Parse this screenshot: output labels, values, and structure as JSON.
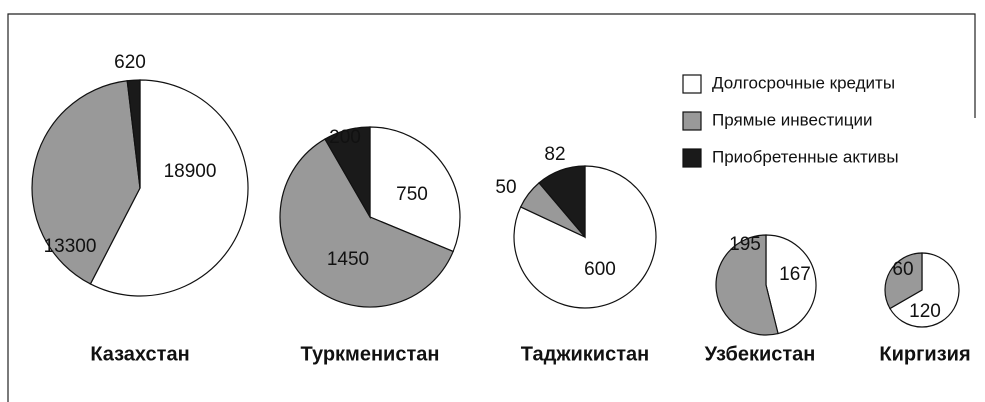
{
  "legend": {
    "categories": [
      "Долгосрочные кредиты",
      "Прямые инвестиции",
      "Приобретенные активы"
    ],
    "colors": [
      "#ffffff",
      "#999999",
      "#1a1a1a"
    ]
  },
  "chart_data": [
    {
      "type": "pie",
      "title": "Казахстан",
      "values": [
        18900,
        13300,
        620
      ]
    },
    {
      "type": "pie",
      "title": "Туркменистан",
      "values": [
        750,
        1450,
        200
      ]
    },
    {
      "type": "pie",
      "title": "Таджикистан",
      "values": [
        600,
        50,
        82
      ]
    },
    {
      "type": "pie",
      "title": "Узбекистан",
      "values": [
        167,
        195
      ]
    },
    {
      "type": "pie",
      "title": "Киргизия",
      "values": [
        120,
        60
      ]
    }
  ]
}
